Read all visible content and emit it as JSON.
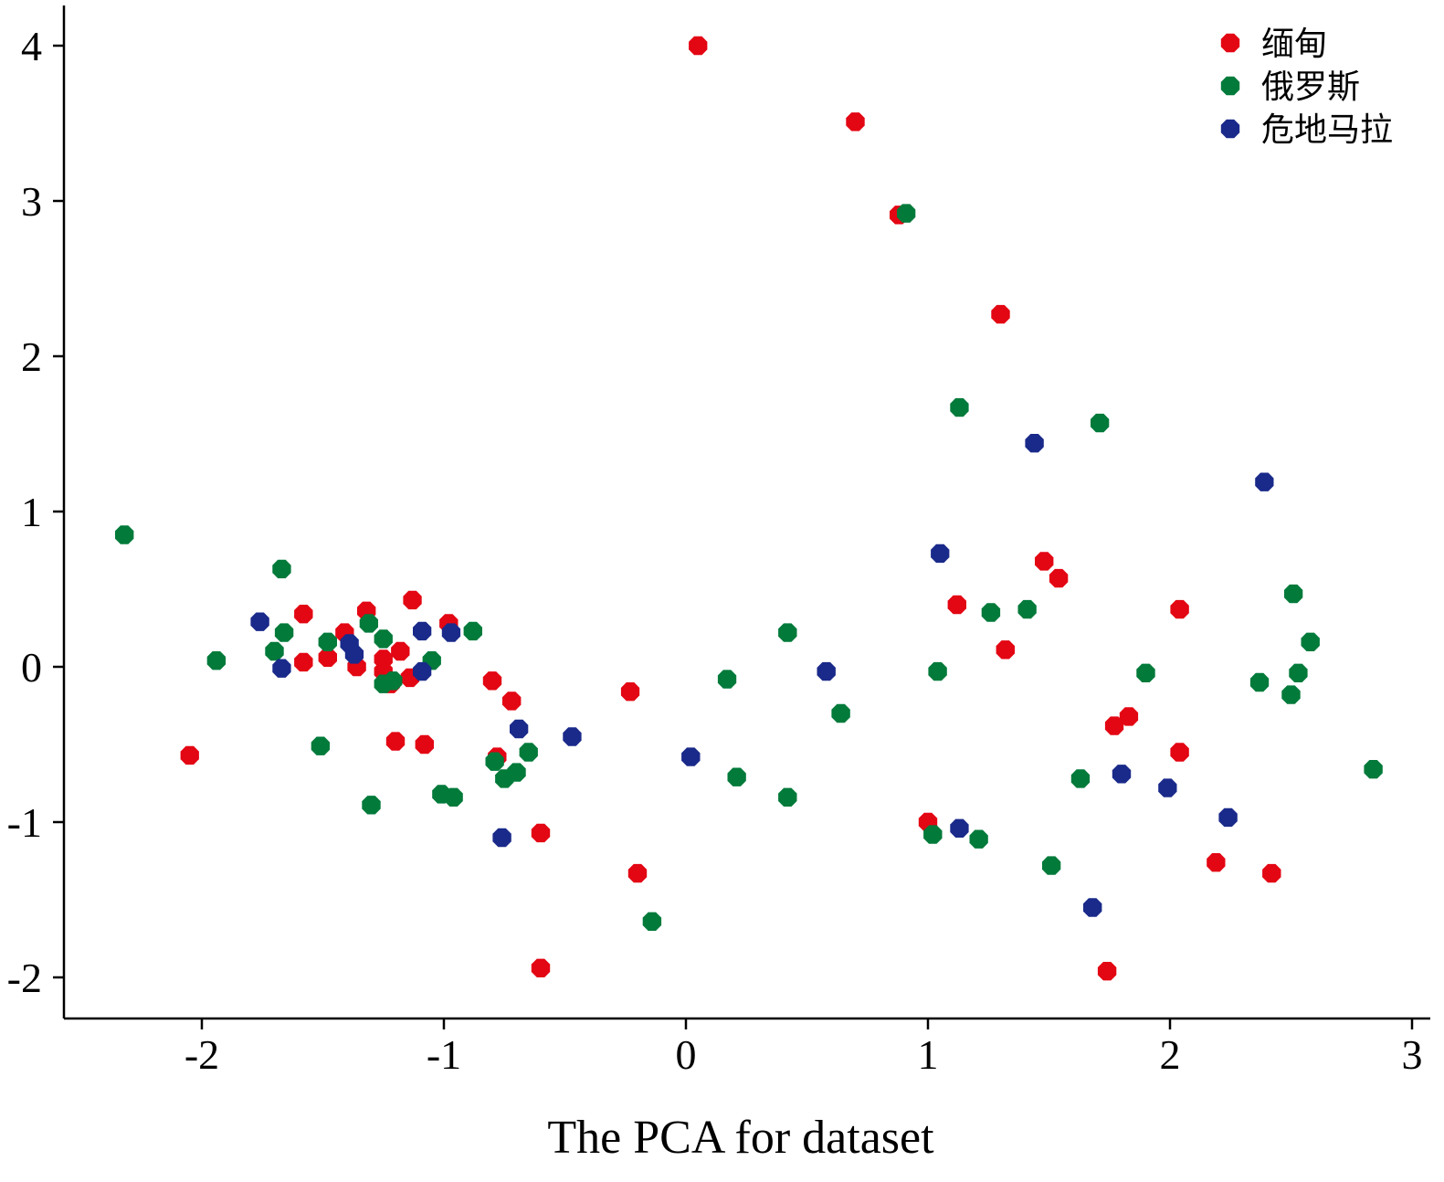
{
  "chart_data": {
    "type": "scatter",
    "title": "",
    "xlabel": "The PCA for dataset",
    "ylabel": "",
    "xlim": [
      -2.6,
      3.05
    ],
    "ylim": [
      -2.25,
      4.25
    ],
    "xticks": [
      -2,
      -1,
      0,
      1,
      2,
      3
    ],
    "yticks": [
      -2,
      -1,
      0,
      1,
      2,
      3,
      4
    ],
    "xtick_labels": [
      "-2",
      "-1",
      "0",
      "1",
      "2",
      "3"
    ],
    "ytick_labels": [
      "-2",
      "-1",
      "0",
      "1",
      "2",
      "3",
      "4"
    ],
    "grid": false,
    "legend_position": "top-right",
    "series": [
      {
        "name": "缅甸",
        "color": "#e30613",
        "points": [
          [
            0.05,
            4.0
          ],
          [
            0.7,
            3.51
          ],
          [
            0.88,
            2.91
          ],
          [
            1.3,
            2.27
          ],
          [
            1.48,
            0.68
          ],
          [
            1.54,
            0.57
          ],
          [
            1.12,
            0.4
          ],
          [
            1.32,
            0.11
          ],
          [
            2.04,
            0.37
          ],
          [
            1.77,
            -0.38
          ],
          [
            1.83,
            -0.32
          ],
          [
            2.04,
            -0.55
          ],
          [
            1.0,
            -1.0
          ],
          [
            2.19,
            -1.26
          ],
          [
            2.42,
            -1.33
          ],
          [
            1.74,
            -1.96
          ],
          [
            -0.23,
            -0.16
          ],
          [
            -0.2,
            -1.33
          ],
          [
            -0.6,
            -1.07
          ],
          [
            -0.6,
            -1.94
          ],
          [
            -0.8,
            -0.09
          ],
          [
            -0.72,
            -0.22
          ],
          [
            -0.78,
            -0.58
          ],
          [
            -2.05,
            -0.57
          ],
          [
            -1.58,
            0.34
          ],
          [
            -1.58,
            0.03
          ],
          [
            -1.48,
            0.06
          ],
          [
            -1.41,
            0.22
          ],
          [
            -1.36,
            0.0
          ],
          [
            -1.32,
            0.36
          ],
          [
            -1.25,
            0.05
          ],
          [
            -1.2,
            -0.48
          ],
          [
            -1.18,
            0.1
          ],
          [
            -1.13,
            0.43
          ],
          [
            -1.14,
            -0.07
          ],
          [
            -1.08,
            -0.5
          ],
          [
            -0.98,
            0.28
          ],
          [
            -1.22,
            -0.11
          ],
          [
            -1.25,
            -0.03
          ]
        ]
      },
      {
        "name": "俄罗斯",
        "color": "#017a3a",
        "points": [
          [
            0.91,
            2.92
          ],
          [
            1.13,
            1.67
          ],
          [
            1.71,
            1.57
          ],
          [
            -2.32,
            0.85
          ],
          [
            -1.67,
            0.63
          ],
          [
            -1.66,
            0.22
          ],
          [
            -1.7,
            0.1
          ],
          [
            -1.94,
            0.04
          ],
          [
            -1.48,
            0.16
          ],
          [
            -1.31,
            0.28
          ],
          [
            -1.25,
            0.18
          ],
          [
            -1.05,
            0.04
          ],
          [
            -1.25,
            -0.11
          ],
          [
            -1.21,
            -0.09
          ],
          [
            -0.88,
            0.23
          ],
          [
            -1.51,
            -0.51
          ],
          [
            -1.3,
            -0.89
          ],
          [
            -1.01,
            -0.82
          ],
          [
            -0.96,
            -0.84
          ],
          [
            -0.79,
            -0.61
          ],
          [
            -0.75,
            -0.72
          ],
          [
            -0.7,
            -0.68
          ],
          [
            -0.65,
            -0.55
          ],
          [
            -0.14,
            -1.64
          ],
          [
            0.17,
            -0.08
          ],
          [
            0.21,
            -0.71
          ],
          [
            0.42,
            0.22
          ],
          [
            0.42,
            -0.84
          ],
          [
            0.64,
            -0.3
          ],
          [
            1.04,
            -0.03
          ],
          [
            1.02,
            -1.08
          ],
          [
            1.26,
            0.35
          ],
          [
            1.41,
            0.37
          ],
          [
            1.21,
            -1.11
          ],
          [
            1.51,
            -1.28
          ],
          [
            1.63,
            -0.72
          ],
          [
            1.9,
            -0.04
          ],
          [
            2.37,
            -0.1
          ],
          [
            2.51,
            0.47
          ],
          [
            2.58,
            0.16
          ],
          [
            2.53,
            -0.04
          ],
          [
            2.5,
            -0.18
          ],
          [
            2.84,
            -0.66
          ]
        ]
      },
      {
        "name": "危地马拉",
        "color": "#1a2a8a",
        "points": [
          [
            -1.76,
            0.29
          ],
          [
            -1.67,
            -0.01
          ],
          [
            -1.39,
            0.15
          ],
          [
            -1.37,
            0.08
          ],
          [
            -1.09,
            0.23
          ],
          [
            -1.09,
            -0.03
          ],
          [
            -0.97,
            0.22
          ],
          [
            -0.69,
            -0.4
          ],
          [
            -0.47,
            -0.45
          ],
          [
            -0.76,
            -1.1
          ],
          [
            0.02,
            -0.58
          ],
          [
            0.58,
            -0.03
          ],
          [
            1.05,
            0.73
          ],
          [
            1.44,
            1.44
          ],
          [
            2.39,
            1.19
          ],
          [
            1.8,
            -0.69
          ],
          [
            1.99,
            -0.78
          ],
          [
            2.24,
            -0.97
          ],
          [
            1.13,
            -1.04
          ],
          [
            1.68,
            -1.55
          ]
        ]
      }
    ]
  }
}
